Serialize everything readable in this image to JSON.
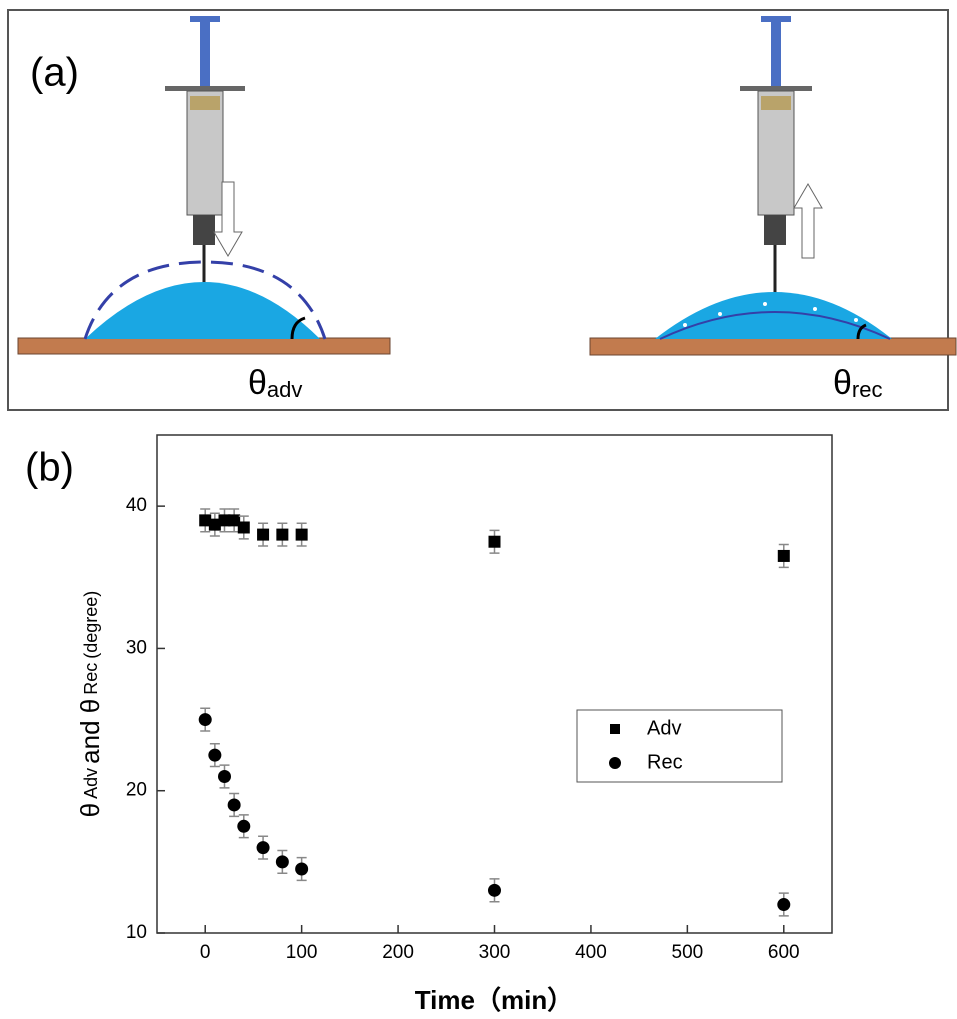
{
  "diagram": {
    "label": "(a)",
    "advancing": {
      "symbol": "θ",
      "subscript": "adv"
    },
    "receding": {
      "symbol": "θ",
      "subscript": "rec"
    }
  },
  "chart_data": {
    "type": "scatter",
    "panel_label": "(b)",
    "xlabel": "Time（min）",
    "ylabel": [
      {
        "text": "θ",
        "sub": false
      },
      {
        "text": "Adv",
        "sub": true
      },
      {
        "text": "and θ",
        "sub": false
      },
      {
        "text": "Rec",
        "sub": true
      },
      {
        "text": "(degree)",
        "sub": true
      }
    ],
    "x": [
      0,
      10,
      20,
      30,
      40,
      60,
      80,
      100,
      300,
      600
    ],
    "series": [
      {
        "name": "Adv",
        "marker": "square",
        "color": "#000000",
        "error_color": "#888888",
        "values": [
          39,
          38.7,
          39,
          39,
          38.5,
          38,
          38,
          38,
          37.5,
          36.5
        ],
        "errors": [
          0.8,
          0.8,
          0.8,
          0.8,
          0.8,
          0.8,
          0.8,
          0.8,
          0.8,
          0.8
        ]
      },
      {
        "name": "Rec",
        "marker": "circle",
        "color": "#000000",
        "error_color": "#888888",
        "values": [
          25,
          22.5,
          21,
          19,
          17.5,
          16,
          15,
          14.5,
          13,
          12
        ],
        "errors": [
          0.8,
          0.8,
          0.8,
          0.8,
          0.8,
          0.8,
          0.8,
          0.8,
          0.8,
          0.8
        ]
      }
    ],
    "xlim": [
      -50,
      650
    ],
    "xticks": [
      0,
      100,
      200,
      300,
      400,
      500,
      600
    ],
    "ylim": [
      10,
      45
    ],
    "yticks": [
      10,
      20,
      30,
      40
    ],
    "grid": false,
    "legend": "center right"
  }
}
